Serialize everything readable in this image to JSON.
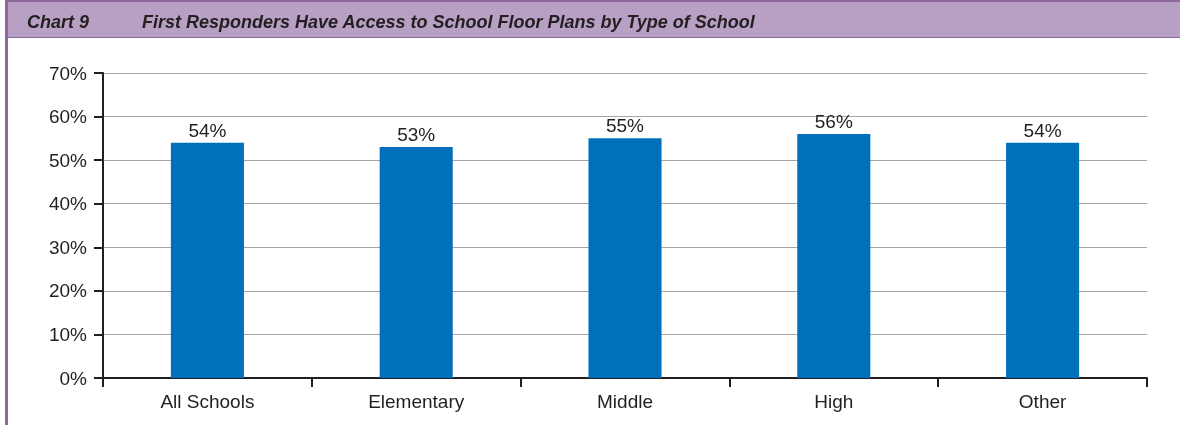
{
  "chart_data": {
    "type": "bar",
    "title": "First Responders Have Access to School Floor Plans by Type of School",
    "annotations": [
      "Chart 9"
    ],
    "categories": [
      "All Schools",
      "Elementary",
      "Middle",
      "High",
      "Other"
    ],
    "values": [
      54,
      53,
      55,
      56,
      54
    ],
    "value_labels": [
      "54%",
      "53%",
      "55%",
      "56%",
      "54%"
    ],
    "color": "#0070bb",
    "ylim": [
      0,
      70
    ],
    "yticks": [
      {
        "value": 0,
        "label": "0%"
      },
      {
        "value": 10,
        "label": "10%"
      },
      {
        "value": 20,
        "label": "20%"
      },
      {
        "value": 30,
        "label": "30%"
      },
      {
        "value": 40,
        "label": "40%"
      },
      {
        "value": 50,
        "label": "50%"
      },
      {
        "value": 60,
        "label": "60%"
      },
      {
        "value": 70,
        "label": "70%"
      }
    ],
    "grid": "y"
  }
}
